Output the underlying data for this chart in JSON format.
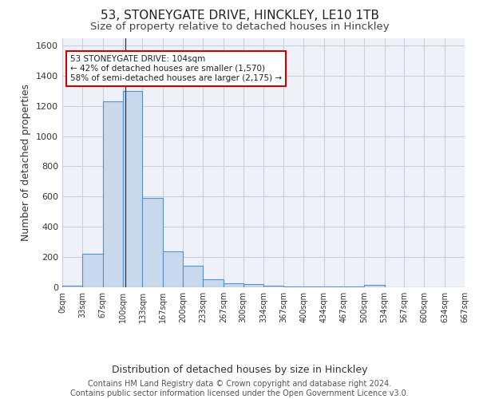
{
  "title1": "53, STONEYGATE DRIVE, HINCKLEY, LE10 1TB",
  "title2": "Size of property relative to detached houses in Hinckley",
  "xlabel": "Distribution of detached houses by size in Hinckley",
  "ylabel": "Number of detached properties",
  "footnote": "Contains HM Land Registry data © Crown copyright and database right 2024.\nContains public sector information licensed under the Open Government Licence v3.0.",
  "bin_edges": [
    0,
    33,
    67,
    100,
    133,
    167,
    200,
    233,
    267,
    300,
    334,
    367,
    400,
    434,
    467,
    500,
    534,
    567,
    600,
    634,
    667
  ],
  "bar_heights": [
    10,
    220,
    1230,
    1300,
    590,
    240,
    140,
    55,
    25,
    20,
    10,
    5,
    5,
    5,
    5,
    15,
    0,
    0,
    0,
    0
  ],
  "bar_color": "#c9d9ed",
  "bar_edgecolor": "#5b8fc9",
  "grid_color": "#c8d0e0",
  "bg_color": "#eef2f8",
  "property_size": 104,
  "annotation_line1": "53 STONEYGATE DRIVE: 104sqm",
  "annotation_line2": "← 42% of detached houses are smaller (1,570)",
  "annotation_line3": "58% of semi-detached houses are larger (2,175) →",
  "annotation_box_color": "#ffffff",
  "annotation_border_color": "#cc0000",
  "vline_color": "#333333",
  "ylim": [
    0,
    1650
  ],
  "yticks": [
    0,
    200,
    400,
    600,
    800,
    1000,
    1200,
    1400,
    1600
  ],
  "title1_fontsize": 11,
  "title2_fontsize": 9.5,
  "tick_fontsize": 7,
  "ylabel_fontsize": 9,
  "xlabel_fontsize": 9,
  "footnote_fontsize": 7
}
